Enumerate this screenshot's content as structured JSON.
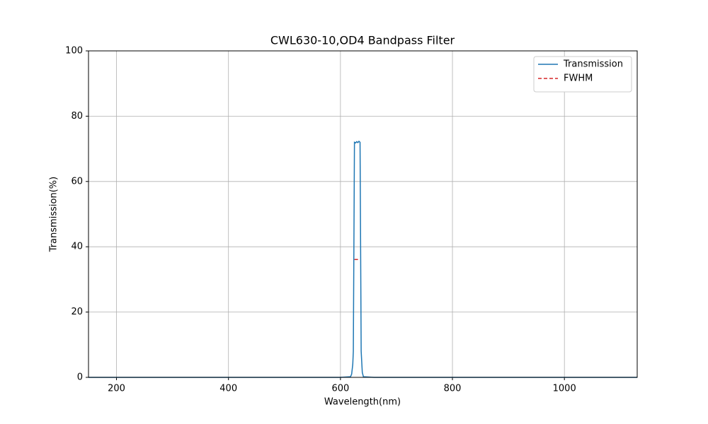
{
  "chart_data": {
    "type": "line",
    "title": "CWL630-10,OD4 Bandpass Filter",
    "x_label": "Wavelength(nm)",
    "y_label": "Transmission(%)",
    "series": [
      {
        "name": "Transmission",
        "color": "#1f77b4",
        "style": "solid",
        "x": [
          150,
          600,
          618,
          620,
          622,
          623,
          625,
          627,
          629,
          631,
          633,
          635,
          636,
          637,
          639,
          641,
          660,
          1130
        ],
        "values": [
          0,
          0,
          0.2,
          1,
          4,
          8,
          72,
          71.8,
          72.2,
          71.9,
          72.3,
          72,
          40,
          8,
          1.5,
          0.2,
          0,
          0
        ]
      },
      {
        "name": "FWHM",
        "color": "#d62728",
        "style": "dashed",
        "x": [
          625,
          635
        ],
        "values": [
          36.1,
          36.1
        ]
      }
    ],
    "xlim": [
      150,
      1130
    ],
    "ylim": [
      0,
      100
    ],
    "xticks": [
      200,
      400,
      600,
      800,
      1000
    ],
    "yticks": [
      0,
      20,
      40,
      60,
      80,
      100
    ],
    "grid": true,
    "legend": "upper right"
  }
}
